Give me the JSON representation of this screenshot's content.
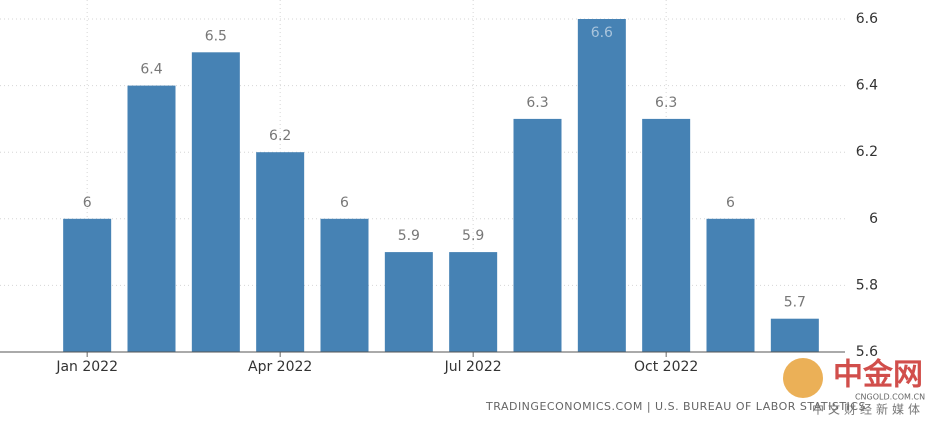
{
  "chart_data": {
    "type": "bar",
    "categories": [
      "Jan 2022",
      null,
      null,
      "Apr 2022",
      null,
      null,
      "Jul 2022",
      null,
      null,
      "Oct 2022",
      null,
      null
    ],
    "values": [
      6,
      6.4,
      6.5,
      6.2,
      6,
      5.9,
      5.9,
      6.3,
      6.6,
      6.3,
      6,
      5.7
    ],
    "color": "#4682b4",
    "ylim": [
      5.6,
      6.6
    ],
    "yticks": [
      5.6,
      5.8,
      6,
      6.2,
      6.4,
      6.6
    ],
    "grid": true,
    "source": "TRADINGECONOMICS.COM | U.S. BUREAU OF LABOR STATISTICS",
    "watermark": {
      "logo": "中金网",
      "domain": "CNGOLD.COM.CN",
      "slogan": "中文财经新媒体"
    }
  }
}
